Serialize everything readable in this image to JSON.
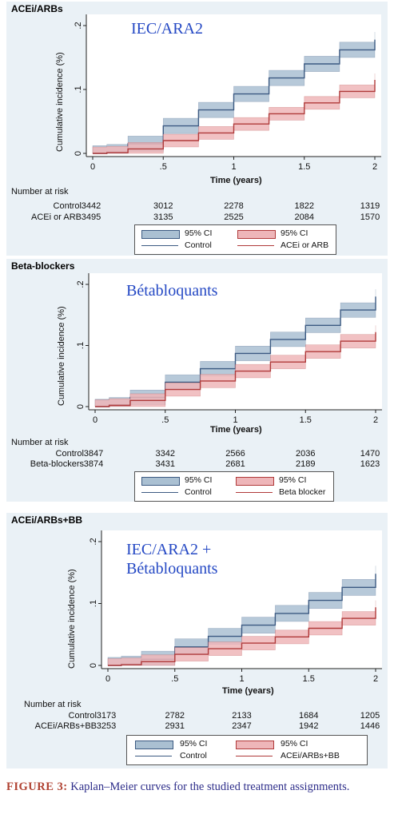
{
  "colors": {
    "control": "#3c5a82",
    "control_band": "#aac0d2",
    "treat": "#b03a3a",
    "treat_band": "#eeb6b9"
  },
  "chart_data": [
    {
      "type": "line",
      "panel_title": "ACEi/ARBs",
      "overlay": "IEC/ARA2",
      "xlabel": "Time (years)",
      "ylabel": "Cumulative incidence (%)",
      "x_ticks": [
        "0",
        ".5",
        "1",
        "1.5",
        "2"
      ],
      "y_ticks": [
        "0",
        ".1",
        ".2"
      ],
      "xlim": [
        0,
        2
      ],
      "ylim": [
        0,
        0.2
      ],
      "series": [
        {
          "name": "Control",
          "x": [
            0.0,
            0.1,
            0.25,
            0.5,
            0.75,
            1.0,
            1.25,
            1.5,
            1.75,
            2.0
          ],
          "y": [
            0.0,
            0.002,
            0.015,
            0.043,
            0.068,
            0.093,
            0.118,
            0.14,
            0.162,
            0.178
          ],
          "ci": 0.012
        },
        {
          "name": "ACEi or ARB",
          "x": [
            0.0,
            0.1,
            0.25,
            0.5,
            0.75,
            1.0,
            1.25,
            1.5,
            1.75,
            2.0
          ],
          "y": [
            0.0,
            0.001,
            0.007,
            0.02,
            0.032,
            0.046,
            0.062,
            0.079,
            0.097,
            0.115
          ],
          "ci": 0.01
        }
      ],
      "number_at_risk": {
        "header": "Number at risk",
        "rows": [
          {
            "label": "Control",
            "values": [
              "3442",
              "3012",
              "2278",
              "1822",
              "1319"
            ]
          },
          {
            "label": "ACEi or ARB",
            "values": [
              "3495",
              "3135",
              "2525",
              "2084",
              "1570"
            ]
          }
        ]
      },
      "legend": {
        "ci_label": "95% CI",
        "items": [
          "Control",
          "ACEi or ARB"
        ]
      }
    },
    {
      "type": "line",
      "panel_title": "Beta-blockers",
      "overlay": "Bétabloquants",
      "xlabel": "Time (years)",
      "ylabel": "Cumulative incidence (%)",
      "x_ticks": [
        "0",
        ".5",
        "1",
        "1.5",
        "2"
      ],
      "y_ticks": [
        "0",
        ".1",
        ".2"
      ],
      "xlim": [
        0,
        2
      ],
      "ylim": [
        0,
        0.2
      ],
      "series": [
        {
          "name": "Control",
          "x": [
            0.0,
            0.1,
            0.25,
            0.5,
            0.75,
            1.0,
            1.25,
            1.5,
            1.75,
            2.0
          ],
          "y": [
            0.0,
            0.003,
            0.015,
            0.04,
            0.062,
            0.087,
            0.11,
            0.133,
            0.158,
            0.18
          ],
          "ci": 0.012
        },
        {
          "name": "Beta blocker",
          "x": [
            0.0,
            0.1,
            0.25,
            0.5,
            0.75,
            1.0,
            1.25,
            1.5,
            1.75,
            2.0
          ],
          "y": [
            0.0,
            0.002,
            0.01,
            0.028,
            0.042,
            0.058,
            0.073,
            0.09,
            0.107,
            0.122
          ],
          "ci": 0.011
        }
      ],
      "number_at_risk": {
        "header": "Number at risk",
        "rows": [
          {
            "label": "Control",
            "values": [
              "3847",
              "3342",
              "2566",
              "2036",
              "1470"
            ]
          },
          {
            "label": "Beta-blockers",
            "values": [
              "3874",
              "3431",
              "2681",
              "2189",
              "1623"
            ]
          }
        ]
      },
      "legend": {
        "ci_label": "95% CI",
        "items": [
          "Control",
          "Beta blocker"
        ]
      }
    },
    {
      "type": "line",
      "panel_title": "ACEi/ARBs+BB",
      "overlay": "IEC/ARA2 + Bétabloquants",
      "xlabel": "Time (years)",
      "ylabel": "Cumulative incidence (%)",
      "x_ticks": [
        "0",
        ".5",
        "1",
        "1.5",
        "2"
      ],
      "y_ticks": [
        "0",
        ".1",
        ".2"
      ],
      "xlim": [
        0,
        2
      ],
      "ylim": [
        0,
        0.2
      ],
      "series": [
        {
          "name": "Control",
          "x": [
            0.0,
            0.1,
            0.25,
            0.5,
            0.75,
            1.0,
            1.25,
            1.5,
            1.75,
            2.0
          ],
          "y": [
            0.0,
            0.002,
            0.01,
            0.03,
            0.047,
            0.065,
            0.084,
            0.105,
            0.126,
            0.148
          ],
          "ci": 0.013
        },
        {
          "name": "ACEi/ARBs+BB",
          "x": [
            0.0,
            0.1,
            0.25,
            0.5,
            0.75,
            1.0,
            1.25,
            1.5,
            1.75,
            2.0
          ],
          "y": [
            0.0,
            0.001,
            0.006,
            0.018,
            0.027,
            0.036,
            0.046,
            0.06,
            0.076,
            0.094
          ],
          "ci": 0.011
        }
      ],
      "number_at_risk": {
        "header": "Number at risk",
        "rows": [
          {
            "label": "Control",
            "values": [
              "3173",
              "2782",
              "2133",
              "1684",
              "1205"
            ]
          },
          {
            "label": "ACEi/ARBs+BB",
            "values": [
              "3253",
              "2931",
              "2347",
              "1942",
              "1446"
            ]
          }
        ]
      },
      "legend": {
        "ci_label": "95% CI",
        "items": [
          "Control",
          "ACEi/ARBs+BB"
        ]
      }
    }
  ],
  "caption": {
    "label": "FIGURE 3:",
    "text": "Kaplan–Meier curves for the studied treatment assignments."
  }
}
